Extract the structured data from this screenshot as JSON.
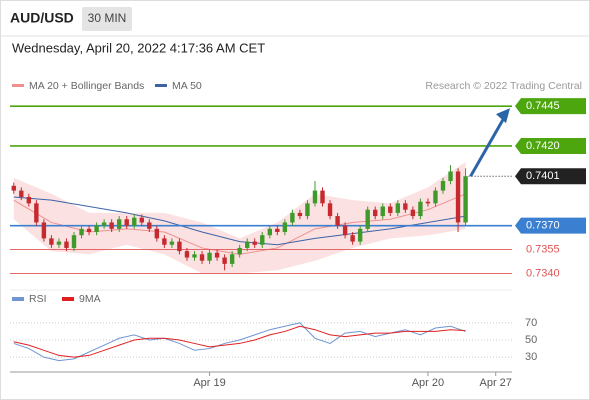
{
  "header": {
    "symbol": "AUD/USD",
    "timeframe": "30 MIN",
    "datetime": "Wednesday, April 20, 2022 4:17:36 AM CET"
  },
  "chart_data": [
    {
      "type": "candlestick",
      "source": "Research © 2022 Trading Central",
      "categories": [
        null,
        null,
        null,
        null,
        null,
        null,
        null,
        null,
        null,
        null,
        null,
        null,
        null,
        null,
        null,
        null,
        null,
        null,
        null,
        null,
        null,
        null,
        null,
        null,
        null,
        null,
        "Apr 19",
        null,
        null,
        null,
        null,
        null,
        null,
        null,
        null,
        null,
        null,
        null,
        null,
        null,
        null,
        null,
        null,
        null,
        null,
        null,
        null,
        null,
        null,
        null,
        null,
        null,
        null,
        null,
        null,
        "Apr 20",
        null,
        null,
        null,
        null,
        null,
        null,
        null,
        null,
        "Apr 27",
        null
      ],
      "open": [
        0.7395,
        0.7392,
        0.7388,
        0.7384,
        0.7372,
        0.7362,
        0.7358,
        0.736,
        0.7356,
        0.7364,
        0.7368,
        0.7366,
        0.737,
        0.7372,
        0.7368,
        0.7374,
        0.737,
        0.7375,
        0.7372,
        0.7368,
        0.7362,
        0.7358,
        0.736,
        0.7354,
        0.735,
        0.7352,
        0.7348,
        0.7353,
        0.735,
        0.7346,
        0.7352,
        0.7356,
        0.736,
        0.7358,
        0.7364,
        0.7368,
        0.7366,
        0.7372,
        0.7378,
        0.7376,
        0.7384,
        0.7392,
        0.7384,
        0.7376,
        0.737,
        0.7364,
        0.736,
        0.7368,
        0.738,
        0.7376,
        0.7382,
        0.7378,
        0.7384,
        0.738,
        0.7376,
        0.7385,
        0.7384,
        0.7392,
        0.7398,
        0.7404,
        0.7372,
        null,
        null,
        null,
        null,
        null
      ],
      "high": [
        0.7397,
        0.7394,
        0.739,
        0.7386,
        0.7374,
        0.7364,
        0.7362,
        0.7362,
        0.7366,
        0.737,
        0.737,
        0.7372,
        0.7374,
        0.7374,
        0.7376,
        0.7376,
        0.7377,
        0.7377,
        0.7374,
        0.737,
        0.7364,
        0.7362,
        0.7362,
        0.7356,
        0.7354,
        0.7354,
        0.7355,
        0.7355,
        0.7352,
        0.7354,
        0.7358,
        0.7362,
        0.7362,
        0.7366,
        0.737,
        0.737,
        0.7374,
        0.738,
        0.738,
        0.7386,
        0.7398,
        0.7394,
        0.7386,
        0.7378,
        0.7372,
        0.7366,
        0.737,
        0.7382,
        0.7382,
        0.7384,
        0.7384,
        0.7386,
        0.7386,
        0.7382,
        0.7387,
        0.7387,
        0.7394,
        0.74,
        0.7408,
        0.7406,
        0.7406,
        null,
        null,
        null,
        null,
        null
      ],
      "low": [
        0.739,
        0.7386,
        0.7382,
        0.737,
        0.736,
        0.7356,
        0.7356,
        0.7354,
        0.7354,
        0.7362,
        0.7364,
        0.7364,
        0.7368,
        0.7366,
        0.7366,
        0.7368,
        0.7368,
        0.737,
        0.7366,
        0.736,
        0.7356,
        0.7356,
        0.7352,
        0.7348,
        0.7348,
        0.7346,
        0.7346,
        0.7348,
        0.7342,
        0.7344,
        0.735,
        0.7354,
        0.7356,
        0.7356,
        0.7362,
        0.7364,
        0.7364,
        0.737,
        0.7374,
        0.7374,
        0.7382,
        0.7382,
        0.7374,
        0.7368,
        0.7362,
        0.7358,
        0.7358,
        0.7366,
        0.7374,
        0.7374,
        0.7376,
        0.7376,
        0.7378,
        0.7374,
        0.7374,
        0.7382,
        0.7382,
        0.739,
        0.7396,
        0.7366,
        0.737,
        null,
        null,
        null,
        null,
        null
      ],
      "close": [
        0.7392,
        0.7388,
        0.7384,
        0.7372,
        0.7362,
        0.7358,
        0.736,
        0.7356,
        0.7364,
        0.7368,
        0.7366,
        0.737,
        0.7372,
        0.7368,
        0.7374,
        0.737,
        0.7375,
        0.7372,
        0.7368,
        0.7362,
        0.7358,
        0.736,
        0.7354,
        0.735,
        0.7352,
        0.7348,
        0.7353,
        0.735,
        0.7346,
        0.7352,
        0.7356,
        0.736,
        0.7358,
        0.7364,
        0.7368,
        0.7366,
        0.7372,
        0.7378,
        0.7376,
        0.7384,
        0.7392,
        0.7384,
        0.7376,
        0.737,
        0.7364,
        0.736,
        0.7368,
        0.738,
        0.7376,
        0.7382,
        0.7378,
        0.7384,
        0.738,
        0.7376,
        0.7385,
        0.7384,
        0.7392,
        0.7398,
        0.7404,
        0.7372,
        0.7401,
        null,
        null,
        null,
        null,
        null
      ],
      "up_color": "#3f9a2c",
      "down_color": "#c42a2e",
      "overlays": [
        {
          "name": "MA 20 + Bollinger Bands",
          "color": "#f08f8f",
          "band_color": "#f8c8c8",
          "x": [
            0,
            5,
            10,
            15,
            20,
            25,
            30,
            35,
            40,
            45,
            50,
            55,
            60
          ],
          "values": [
            0.7386,
            0.7372,
            0.7366,
            0.7368,
            0.7366,
            0.7356,
            0.7352,
            0.7356,
            0.7368,
            0.7372,
            0.7374,
            0.738,
            0.739
          ],
          "band": {
            "upper": [
              0.74,
              0.739,
              0.7378,
              0.7378,
              0.7378,
              0.7372,
              0.7362,
              0.7372,
              0.739,
              0.7386,
              0.7384,
              0.7394,
              0.741
            ],
            "lower": [
              0.7374,
              0.7354,
              0.7352,
              0.7358,
              0.7352,
              0.734,
              0.734,
              0.7342,
              0.7348,
              0.7356,
              0.7362,
              0.7364,
              0.7368
            ]
          }
        },
        {
          "name": "MA 50",
          "color": "#3d63a6",
          "x": [
            0,
            5,
            10,
            15,
            20,
            25,
            30,
            35,
            40,
            45,
            50,
            55,
            60
          ],
          "values": [
            0.7388,
            0.7386,
            0.7382,
            0.7378,
            0.7373,
            0.7366,
            0.736,
            0.7358,
            0.7362,
            0.7365,
            0.7368,
            0.7372,
            0.7376
          ]
        }
      ],
      "levels": [
        {
          "value": 0.7445,
          "label": "0.7445",
          "color": "#4ea60f",
          "kind": "box"
        },
        {
          "value": 0.742,
          "label": "0.7420",
          "color": "#4ea60f",
          "kind": "box"
        },
        {
          "value": 0.7401,
          "label": "0.7401",
          "color": "#222222",
          "kind": "current"
        },
        {
          "value": 0.737,
          "label": "0.7370",
          "color": "#3a7fd0",
          "kind": "box"
        },
        {
          "value": 0.7355,
          "label": "0.7355",
          "color": "#e05555",
          "kind": "text"
        },
        {
          "value": 0.734,
          "label": "0.7340",
          "color": "#e05555",
          "kind": "text"
        }
      ],
      "ylim": [
        0.7334,
        0.7452
      ]
    },
    {
      "type": "line",
      "series": [
        {
          "name": "RSI",
          "color": "#6f95d2",
          "x": [
            0,
            2,
            4,
            6,
            8,
            10,
            12,
            14,
            16,
            18,
            20,
            22,
            24,
            26,
            28,
            30,
            32,
            34,
            36,
            38,
            40,
            42,
            44,
            46,
            48,
            50,
            52,
            54,
            56,
            58,
            60
          ],
          "values": [
            46,
            40,
            30,
            26,
            28,
            36,
            44,
            52,
            56,
            50,
            52,
            46,
            38,
            40,
            46,
            50,
            56,
            62,
            66,
            70,
            52,
            46,
            58,
            60,
            54,
            58,
            62,
            56,
            64,
            66,
            60
          ]
        },
        {
          "name": "9MA",
          "color": "#e02020",
          "x": [
            0,
            2,
            4,
            6,
            8,
            10,
            12,
            14,
            16,
            18,
            20,
            22,
            24,
            26,
            28,
            30,
            32,
            34,
            36,
            38,
            40,
            42,
            44,
            46,
            48,
            50,
            52,
            54,
            56,
            58,
            60
          ],
          "values": [
            48,
            44,
            38,
            32,
            30,
            32,
            38,
            44,
            50,
            52,
            52,
            50,
            46,
            42,
            44,
            46,
            50,
            56,
            60,
            66,
            62,
            56,
            54,
            56,
            58,
            58,
            60,
            60,
            60,
            62,
            61
          ]
        }
      ],
      "ylim": [
        15,
        85
      ],
      "yticks": [
        30,
        50,
        70
      ],
      "grid": true
    }
  ]
}
